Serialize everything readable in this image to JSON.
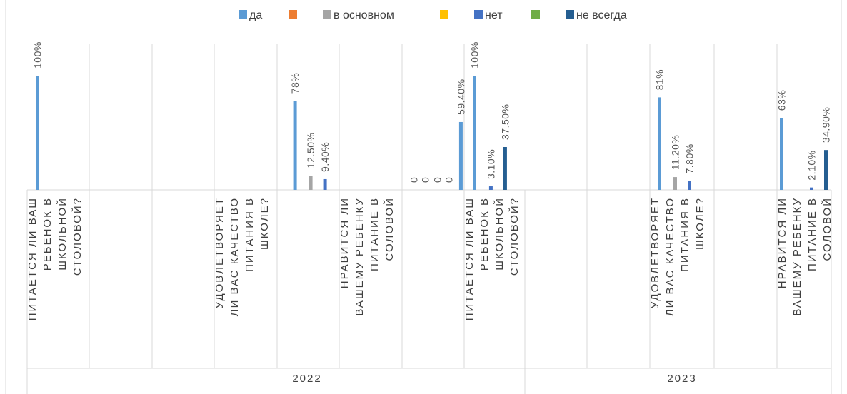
{
  "chart_data": {
    "type": "bar",
    "title": "",
    "xlabel": "",
    "ylabel": "",
    "ylim": [
      0,
      1.1
    ],
    "grid": false,
    "legend_position": "top",
    "colors": {
      "да": "#5B9BD5",
      "series2": "#ED7D31",
      "в основном": "#A5A5A5",
      "series4": "#FFC000",
      "нет": "#4472C4",
      "series6": "#70AD47",
      "не всегда": "#255E91"
    },
    "legend": [
      "да",
      "",
      "в основном",
      "",
      "нет",
      "",
      "не всегда"
    ],
    "groups": [
      {
        "name": "2022",
        "categories": [
          {
            "label": "ПИТАЕТСЯ ЛИ ВАШ РЕБЕНОК В ШКОЛЬНОЙ СТОЛОВОЙ?",
            "lines": [
              "ПИТАЕТСЯ ЛИ ВАШ",
              "РЕБЕНОК В",
              "ШКОЛЬНОЙ",
              "СТОЛОВОЙ?"
            ]
          },
          {
            "label": "",
            "lines": []
          },
          {
            "label": "",
            "lines": []
          },
          {
            "label": "УДОВЛЕТВОРЯЕТ ЛИ ВАС КАЧЕСТВО ПИТАНИЯ В ШКОЛЕ?",
            "lines": [
              "УДОВЛЕТВОРЯЕТ",
              "ЛИ ВАС КАЧЕСТВО",
              "ПИТАНИЯ В",
              "ШКОЛЕ?"
            ]
          },
          {
            "label": "",
            "lines": []
          },
          {
            "label": "НРАВИТСЯ ЛИ ВАШЕМУ РЕБЕНКУ ПИТАНИЕ В СОЛОВОЙ",
            "lines": [
              "НРАВИТСЯ ЛИ",
              "ВАШЕМУ РЕБЕНКУ",
              "ПИТАНИЕ В",
              "СОЛОВОЙ"
            ]
          }
        ]
      },
      {
        "name": "2023",
        "categories": [
          {
            "label": "",
            "lines": []
          },
          {
            "label": "ПИТАЕТСЯ ЛИ ВАШ РЕБЕНОК В ШКОЛЬНОЙ СТОЛОВОЙ?",
            "lines": [
              "ПИТАЕТСЯ ЛИ ВАШ",
              "РЕБЕНОК В",
              "ШКОЛЬНОЙ",
              "СТОЛОВОЙ?"
            ]
          },
          {
            "label": "",
            "lines": []
          },
          {
            "label": "",
            "lines": []
          },
          {
            "label": "УДОВЛЕТВОРЯЕТ ЛИ ВАС КАЧЕСТВО ПИТАНИЯ В ШКОЛЕ?",
            "lines": [
              "УДОВЛЕТВОРЯЕТ",
              "ЛИ ВАС КАЧЕСТВО",
              "ПИТАНИЯ В",
              "ШКОЛЕ?"
            ]
          },
          {
            "label": "",
            "lines": []
          },
          {
            "label": "НРАВИТСЯ ЛИ ВАШЕМУ РЕБЕНКУ ПИТАНИЕ В СОЛОВОЙ",
            "lines": [
              "НРАВИТСЯ ЛИ",
              "ВАШЕМУ РЕБЕНКУ",
              "ПИТАНИЕ В",
              "СОЛОВОЙ"
            ]
          }
        ]
      }
    ],
    "points": [
      {
        "group": 0,
        "cat": 0,
        "series": "да",
        "value": 1.0,
        "label": "100%"
      },
      {
        "group": 0,
        "cat": 3,
        "series": "да",
        "value": 0.78,
        "label": "78%"
      },
      {
        "group": 0,
        "cat": 3,
        "series": "в основном",
        "value": 0.125,
        "label": "12.50%"
      },
      {
        "group": 0,
        "cat": 3,
        "series": "нет",
        "value": 0.094,
        "label": "9.40%"
      },
      {
        "group": 0,
        "cat": 5,
        "series": "да",
        "value": 0.594,
        "label": "59.40%"
      },
      {
        "group": 0,
        "cat": 5,
        "series": "нет",
        "value": 0.031,
        "label": "3.10%"
      },
      {
        "group": 0,
        "cat": 5,
        "series": "не всегда",
        "value": 0.375,
        "label": "37.50%"
      },
      {
        "group": 1,
        "cat": 0,
        "series": "да",
        "value": 0,
        "label": "0"
      },
      {
        "group": 1,
        "cat": 0,
        "series": "в основном",
        "value": 0,
        "label": "0"
      },
      {
        "group": 1,
        "cat": 0,
        "series": "нет",
        "value": 0,
        "label": "0"
      },
      {
        "group": 1,
        "cat": 0,
        "series": "не всегда",
        "value": 0,
        "label": "0"
      },
      {
        "group": 1,
        "cat": 1,
        "series": "да",
        "value": 1.0,
        "label": "100%"
      },
      {
        "group": 1,
        "cat": 4,
        "series": "да",
        "value": 0.81,
        "label": "81%"
      },
      {
        "group": 1,
        "cat": 4,
        "series": "в основном",
        "value": 0.112,
        "label": "11.20%"
      },
      {
        "group": 1,
        "cat": 4,
        "series": "нет",
        "value": 0.078,
        "label": "7.80%"
      },
      {
        "group": 1,
        "cat": 6,
        "series": "да",
        "value": 0.63,
        "label": "63%"
      },
      {
        "group": 1,
        "cat": 6,
        "series": "нет",
        "value": 0.021,
        "label": "2.10%"
      },
      {
        "group": 1,
        "cat": 6,
        "series": "не всегда",
        "value": 0.349,
        "label": "34.90%"
      }
    ]
  }
}
